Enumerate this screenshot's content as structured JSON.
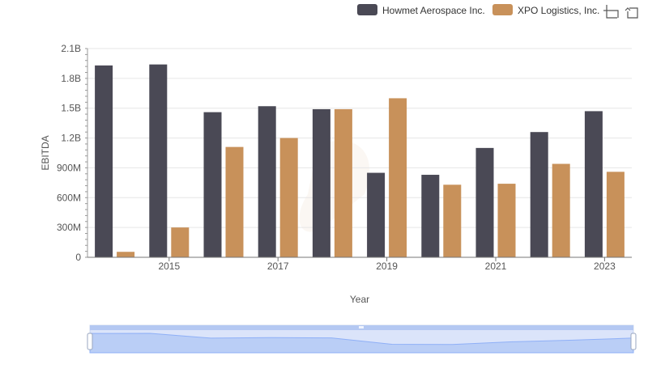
{
  "chart_data": {
    "type": "bar",
    "title": "",
    "xlabel": "Year",
    "ylabel": "EBITDA",
    "categories": [
      "2014",
      "2015",
      "2016",
      "2017",
      "2018",
      "2019",
      "2020",
      "2021",
      "2022",
      "2023"
    ],
    "x_tick_labels": [
      "2015",
      "2017",
      "2019",
      "2021",
      "2023"
    ],
    "y_tick_labels": [
      "0",
      "300M",
      "600M",
      "900M",
      "1.2B",
      "1.5B",
      "1.8B",
      "2.1B"
    ],
    "ylim": [
      0,
      2100000000
    ],
    "grid": true,
    "legend_position": "top-right",
    "series": [
      {
        "name": "Howmet Aerospace Inc.",
        "color": "#4a4955",
        "values": [
          1930000000,
          1940000000,
          1460000000,
          1520000000,
          1490000000,
          850000000,
          830000000,
          1100000000,
          1260000000,
          1470000000
        ]
      },
      {
        "name": "XPO Logistics, Inc.",
        "color": "#c8915a",
        "values": [
          55000000,
          300000000,
          1110000000,
          1200000000,
          1490000000,
          1600000000,
          730000000,
          740000000,
          940000000,
          860000000
        ]
      }
    ]
  },
  "toolbar": {
    "zoom_icon": "zoom-select-icon",
    "reset_icon": "zoom-reset-icon"
  }
}
